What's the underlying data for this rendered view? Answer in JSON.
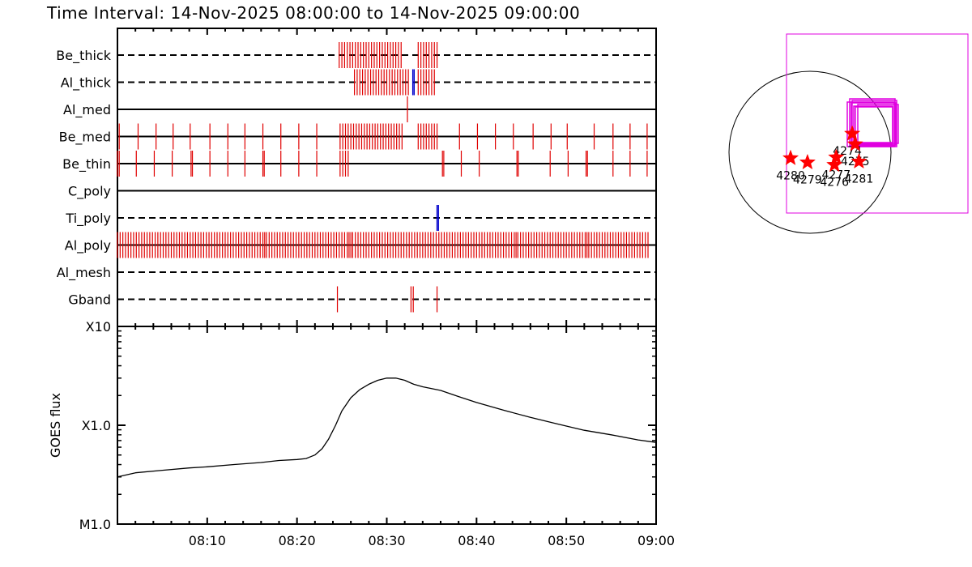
{
  "title": "Time Interval: 14-Nov-2025 08:00:00 to 14-Nov-2025 09:00:00",
  "chart_data": [
    {
      "type": "timeline",
      "x_range_minutes": [
        0,
        60
      ],
      "x_tick_labels": [
        "08:10",
        "08:20",
        "08:30",
        "08:40",
        "08:50",
        "09:00"
      ],
      "x_ticks_minutes": [
        10,
        20,
        30,
        40,
        50,
        60
      ],
      "channels": [
        {
          "name": "Be_thick",
          "line_style": "dashed",
          "red_marks": [
            24.7,
            25.0,
            25.3,
            25.6,
            25.9,
            26.2,
            26.5,
            26.8,
            27.1,
            27.4,
            27.7,
            28.0,
            28.3,
            28.6,
            28.9,
            29.2,
            29.5,
            29.8,
            30.1,
            30.4,
            30.7,
            31.0,
            31.3,
            31.6,
            33.5,
            33.8,
            34.1,
            34.4,
            34.7,
            35.0,
            35.3,
            35.6
          ],
          "blue_marks": []
        },
        {
          "name": "Al_thick",
          "line_style": "dashed",
          "red_marks": [
            26.4,
            26.7,
            27.0,
            27.3,
            27.6,
            27.9,
            28.2,
            28.5,
            28.8,
            29.1,
            29.4,
            29.7,
            30.0,
            30.3,
            30.6,
            30.9,
            31.2,
            31.5,
            31.8,
            32.1,
            32.4,
            33.5,
            33.8,
            34.1,
            34.4,
            34.7,
            35.0,
            35.3
          ],
          "blue_marks": [
            32.9,
            33.05
          ]
        },
        {
          "name": "Al_med",
          "line_style": "solid",
          "red_marks": [
            32.3
          ],
          "blue_marks": []
        },
        {
          "name": "Be_med",
          "line_style": "solid",
          "red_marks": [
            0.2,
            2.3,
            4.3,
            6.2,
            8.1,
            10.3,
            12.3,
            14.2,
            16.2,
            18.2,
            20.2,
            22.2,
            24.8,
            25.1,
            25.4,
            25.7,
            26.0,
            26.3,
            26.6,
            26.9,
            27.2,
            27.5,
            27.8,
            28.1,
            28.4,
            28.7,
            29.0,
            29.3,
            29.6,
            29.9,
            30.2,
            30.5,
            30.8,
            31.1,
            31.4,
            31.7,
            33.5,
            33.8,
            34.1,
            34.4,
            34.7,
            35.0,
            35.3,
            35.6,
            38.1,
            40.1,
            42.1,
            44.1,
            46.3,
            48.3,
            50.1,
            53.1,
            55.2,
            57.1,
            59.0
          ],
          "blue_marks": []
        },
        {
          "name": "Be_thin",
          "line_style": "solid",
          "red_marks": [
            0.0,
            0.2,
            2.1,
            4.1,
            6.1,
            8.2,
            8.35,
            10.3,
            12.3,
            14.2,
            16.2,
            16.35,
            18.2,
            20.2,
            22.2,
            24.8,
            25.1,
            25.4,
            25.7,
            36.2,
            36.35,
            38.3,
            40.3,
            44.5,
            44.65,
            48.2,
            50.2,
            52.2,
            52.35,
            55.2,
            57.1,
            59.0
          ],
          "blue_marks": []
        },
        {
          "name": "C_poly",
          "line_style": "solid",
          "red_marks": [],
          "blue_marks": []
        },
        {
          "name": "Ti_poly",
          "line_style": "dashed",
          "red_marks": [],
          "blue_marks": [
            35.6,
            35.75
          ]
        },
        {
          "name": "Al_poly",
          "line_style": "solid",
          "red_marks": [
            0.0,
            0.3,
            0.6,
            0.9,
            1.2,
            1.5,
            1.8,
            2.1,
            2.4,
            2.7,
            3.0,
            3.3,
            3.6,
            3.9,
            4.2,
            4.5,
            4.8,
            5.1,
            5.4,
            5.7,
            6.0,
            6.3,
            6.6,
            6.9,
            7.2,
            7.5,
            7.8,
            8.1,
            8.4,
            8.7,
            9.0,
            9.3,
            9.6,
            9.9,
            10.2,
            10.5,
            10.8,
            11.1,
            11.4,
            11.7,
            12.0,
            12.3,
            12.6,
            12.9,
            13.2,
            13.5,
            13.8,
            14.1,
            14.4,
            14.7,
            15.0,
            15.3,
            15.6,
            15.9,
            16.2,
            16.4,
            16.6,
            16.9,
            17.2,
            17.5,
            17.8,
            18.1,
            18.4,
            18.7,
            19.0,
            19.3,
            19.6,
            19.9,
            20.2,
            20.5,
            20.8,
            21.1,
            21.4,
            21.7,
            22.0,
            22.3,
            22.6,
            22.9,
            23.2,
            23.5,
            23.8,
            24.1,
            24.4,
            24.7,
            25.0,
            25.3,
            25.6,
            25.8,
            26.0,
            26.2,
            26.5,
            26.8,
            27.1,
            27.4,
            27.7,
            28.0,
            28.3,
            28.6,
            28.9,
            29.2,
            29.5,
            29.8,
            30.1,
            30.4,
            30.7,
            31.0,
            31.3,
            31.6,
            31.9,
            32.2,
            32.5,
            32.8,
            33.1,
            33.4,
            33.7,
            34.0,
            34.3,
            34.6,
            34.9,
            35.2,
            35.5,
            35.8,
            36.1,
            36.4,
            36.7,
            37.0,
            37.3,
            37.6,
            37.9,
            38.2,
            38.5,
            38.8,
            39.1,
            39.4,
            39.7,
            40.0,
            40.3,
            40.6,
            40.9,
            41.2,
            41.5,
            41.8,
            42.1,
            42.4,
            42.7,
            43.0,
            43.3,
            43.6,
            43.9,
            44.2,
            44.4,
            44.6,
            44.9,
            45.2,
            45.5,
            45.8,
            46.1,
            46.4,
            46.7,
            47.0,
            47.3,
            47.6,
            47.9,
            48.2,
            48.5,
            48.8,
            49.1,
            49.4,
            49.7,
            50.0,
            50.3,
            50.6,
            50.9,
            51.2,
            51.5,
            51.8,
            52.1,
            52.3,
            52.5,
            52.8,
            53.1,
            53.4,
            53.7,
            54.0,
            54.3,
            54.6,
            54.9,
            55.2,
            55.5,
            55.8,
            56.1,
            56.4,
            56.7,
            57.0,
            57.3,
            57.6,
            57.9,
            58.2,
            58.5,
            58.8,
            59.1
          ],
          "blue_marks": []
        },
        {
          "name": "Al_mesh",
          "line_style": "dashed",
          "red_marks": [],
          "blue_marks": []
        },
        {
          "name": "Gband",
          "line_style": "dashed",
          "red_marks": [
            24.5,
            32.7,
            32.95,
            35.6
          ],
          "blue_marks": []
        }
      ]
    },
    {
      "type": "line",
      "ylabel": "GOES flux",
      "y_scale": "log",
      "y_tick_labels": [
        "M1.0",
        "X1.0",
        "X10"
      ],
      "y_range_w_m2": [
        1e-05,
        0.001
      ],
      "x_range_minutes": [
        0,
        60
      ],
      "series": [
        {
          "x_minutes": [
            0,
            2,
            5,
            8,
            10,
            13,
            16,
            18,
            20,
            21,
            22,
            22.8,
            23.5,
            24.3,
            25,
            26,
            27,
            28,
            29,
            30,
            31,
            32,
            33,
            34,
            36,
            38,
            40,
            43,
            46,
            49,
            52,
            55,
            58,
            60
          ],
          "y_w_m2": [
            3e-05,
            3.3e-05,
            3.5e-05,
            3.7e-05,
            3.8e-05,
            4e-05,
            4.2e-05,
            4.4e-05,
            4.5e-05,
            4.6e-05,
            5e-05,
            5.8e-05,
            7.2e-05,
            0.0001,
            0.00014,
            0.00019,
            0.00023,
            0.00026,
            0.000285,
            0.0003,
            0.0003,
            0.000285,
            0.00026,
            0.000245,
            0.000225,
            0.000195,
            0.00017,
            0.000142,
            0.00012,
            0.000103,
            8.9e-05,
            8e-05,
            7.1e-05,
            6.7e-05
          ]
        }
      ]
    },
    {
      "type": "scatter",
      "description_units": "heliographic arcsec",
      "disk_circle": true,
      "regions": [
        {
          "label": "4274",
          "x": 500,
          "y": 220
        },
        {
          "label": "4275",
          "x": 535,
          "y": 95
        },
        {
          "label": "4277",
          "x": 310,
          "y": -60
        },
        {
          "label": "4276",
          "x": 290,
          "y": -150
        },
        {
          "label": "4280",
          "x": -230,
          "y": -70
        },
        {
          "label": "4279",
          "x": -30,
          "y": -120
        },
        {
          "label": "4281",
          "x": 580,
          "y": -110
        }
      ]
    }
  ]
}
